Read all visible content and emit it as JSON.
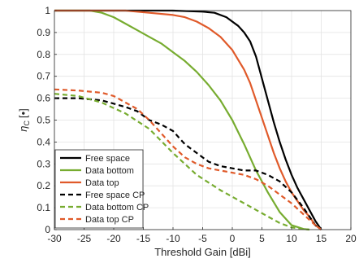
{
  "chart_data": {
    "type": "line",
    "title": "",
    "xlabel": "Threshold Gain [dBi]",
    "ylabel_symbol": "η",
    "ylabel_subscript": "C",
    "ylabel_unit": "[•]",
    "xlim": [
      -30,
      20
    ],
    "ylim": [
      0,
      1
    ],
    "xticks": [
      -30,
      -25,
      -20,
      -15,
      -10,
      -5,
      0,
      5,
      10,
      15,
      20
    ],
    "yticks": [
      0,
      0.1,
      0.2,
      0.3,
      0.4,
      0.5,
      0.6,
      0.7,
      0.8,
      0.9,
      1
    ],
    "grid": true,
    "legend_position": "bottom-left",
    "series": [
      {
        "name": "Free space",
        "color": "#000000",
        "dash": "solid",
        "x": [
          -30,
          -10,
          -5,
          -3,
          -1,
          0,
          1,
          2,
          3,
          4,
          5,
          6,
          7,
          8,
          9,
          10,
          11,
          12,
          13,
          14,
          14.5,
          15
        ],
        "y": [
          1,
          1,
          0.995,
          0.99,
          0.97,
          0.95,
          0.93,
          0.9,
          0.86,
          0.79,
          0.69,
          0.59,
          0.49,
          0.4,
          0.32,
          0.25,
          0.19,
          0.14,
          0.09,
          0.04,
          0.02,
          0
        ]
      },
      {
        "name": "Data bottom",
        "color": "#77ac30",
        "dash": "solid",
        "x": [
          -30,
          -24,
          -22,
          -20,
          -18,
          -16,
          -14,
          -12,
          -10,
          -8,
          -6,
          -4,
          -2,
          0,
          2,
          4,
          6,
          8,
          10,
          12,
          13
        ],
        "y": [
          1,
          1,
          0.99,
          0.97,
          0.94,
          0.91,
          0.88,
          0.85,
          0.81,
          0.77,
          0.72,
          0.66,
          0.59,
          0.5,
          0.39,
          0.27,
          0.17,
          0.08,
          0.02,
          0.003,
          0
        ]
      },
      {
        "name": "Data top",
        "color": "#e05a2a",
        "dash": "solid",
        "x": [
          -30,
          -18,
          -14,
          -10,
          -8,
          -6,
          -4,
          -2,
          0,
          2,
          3,
          4,
          5,
          6,
          7,
          8,
          9,
          10,
          11,
          12,
          13,
          14,
          15
        ],
        "y": [
          1,
          1,
          0.99,
          0.98,
          0.97,
          0.95,
          0.92,
          0.88,
          0.82,
          0.73,
          0.67,
          0.59,
          0.51,
          0.43,
          0.35,
          0.28,
          0.22,
          0.17,
          0.13,
          0.09,
          0.06,
          0.02,
          0
        ]
      },
      {
        "name": "Free space CP",
        "color": "#000000",
        "dash": "dashed",
        "x": [
          -30,
          -26,
          -22,
          -18,
          -16,
          -14,
          -12,
          -10,
          -8,
          -6,
          -4,
          -2,
          0,
          2,
          4,
          6,
          8,
          10,
          12,
          13,
          14,
          15
        ],
        "y": [
          0.6,
          0.6,
          0.59,
          0.56,
          0.54,
          0.5,
          0.48,
          0.45,
          0.39,
          0.35,
          0.31,
          0.29,
          0.28,
          0.27,
          0.27,
          0.25,
          0.22,
          0.17,
          0.1,
          0.06,
          0.02,
          0
        ]
      },
      {
        "name": "Data bottom CP",
        "color": "#77ac30",
        "dash": "dashed",
        "x": [
          -30,
          -26,
          -22,
          -18,
          -14,
          -10,
          -6,
          -2,
          2,
          6,
          8,
          10,
          12,
          13
        ],
        "y": [
          0.62,
          0.61,
          0.58,
          0.53,
          0.46,
          0.35,
          0.25,
          0.18,
          0.12,
          0.06,
          0.03,
          0.01,
          0.003,
          0
        ]
      },
      {
        "name": "Data top CP",
        "color": "#e05a2a",
        "dash": "dashed",
        "x": [
          -30,
          -26,
          -22,
          -20,
          -18,
          -16,
          -14,
          -12,
          -10,
          -8,
          -6,
          -4,
          -2,
          0,
          2,
          4,
          6,
          8,
          10,
          12,
          14,
          15
        ],
        "y": [
          0.64,
          0.635,
          0.625,
          0.61,
          0.58,
          0.55,
          0.5,
          0.44,
          0.38,
          0.33,
          0.3,
          0.28,
          0.27,
          0.26,
          0.25,
          0.23,
          0.2,
          0.16,
          0.12,
          0.07,
          0.02,
          0
        ]
      }
    ]
  }
}
